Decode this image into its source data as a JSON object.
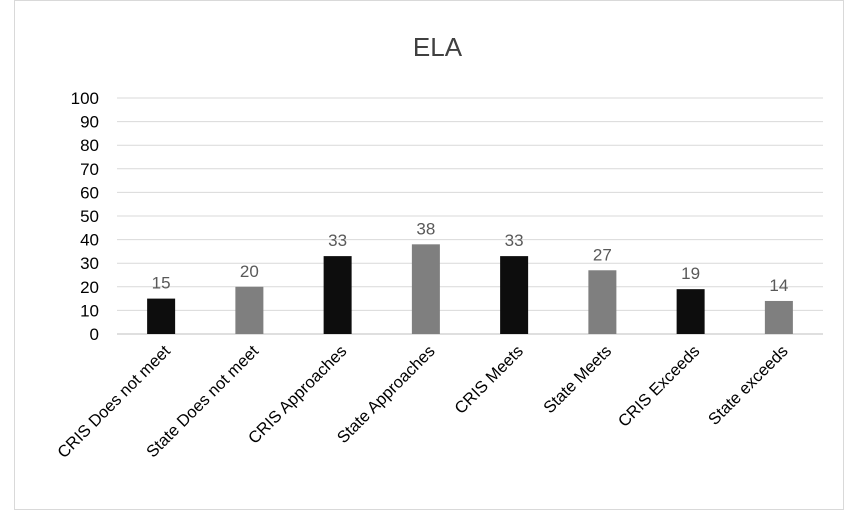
{
  "chart_data": {
    "type": "bar",
    "title": "ELA",
    "xlabel": "",
    "ylabel": "",
    "categories": [
      "CRIS Does not meet",
      "State Does not meet",
      "CRIS Approaches",
      "State Approaches",
      "CRIS Meets",
      "State Meets",
      "CRIS Exceeds",
      "State exceeds"
    ],
    "values": [
      15,
      20,
      33,
      38,
      33,
      27,
      19,
      14
    ],
    "bar_colors": [
      "#0d0d0d",
      "#7f7f7f",
      "#0d0d0d",
      "#7f7f7f",
      "#0d0d0d",
      "#7f7f7f",
      "#0d0d0d",
      "#7f7f7f"
    ],
    "ylim": [
      0,
      100
    ],
    "yticks": [
      0,
      10,
      20,
      30,
      40,
      50,
      60,
      70,
      80,
      90,
      100
    ],
    "grid": true,
    "legend": "none",
    "data_labels": true
  }
}
